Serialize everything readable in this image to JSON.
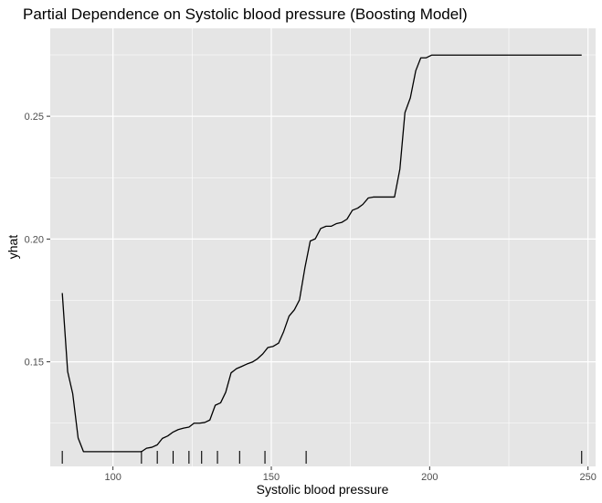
{
  "chart_data": {
    "type": "line",
    "title": "Partial Dependence on Systolic blood pressure (Boosting Model)",
    "xlabel": "Systolic blood pressure",
    "ylabel": "yhat",
    "xlim": [
      80.2,
      252.4
    ],
    "ylim": [
      0.1074,
      0.2858
    ],
    "x_ticks": [
      100,
      150,
      200,
      250
    ],
    "x_tick_labels": [
      "100",
      "150",
      "200",
      "250"
    ],
    "y_ticks": [
      0.15,
      0.2,
      0.25
    ],
    "y_tick_labels": [
      "0.15",
      "0.20",
      "0.25"
    ],
    "grid": true,
    "background": "#e5e5e5",
    "grid_color": "#ffffff",
    "line_color": "#000000",
    "series": [
      {
        "x": [
          84,
          85.7,
          87.3,
          89,
          90.7,
          92.3,
          94,
          95.6,
          97.3,
          99,
          100.6,
          102.3,
          104,
          105.6,
          107.3,
          109,
          110.6,
          112.3,
          114,
          115.6,
          117.3,
          119,
          120.6,
          122.3,
          124,
          125.6,
          127.3,
          129,
          130.6,
          132.3,
          134,
          135.6,
          137.3,
          139,
          140.6,
          142.3,
          144,
          145.6,
          147.3,
          148.9,
          150.6,
          152.3,
          153.9,
          155.6,
          157.3,
          158.9,
          160.6,
          162.3,
          163.9,
          165.6,
          167.3,
          168.9,
          170.6,
          172.3,
          173.9,
          175.6,
          177.3,
          178.9,
          180.6,
          182.2,
          183.9,
          185.6,
          187.2,
          188.9,
          190.6,
          192.2,
          193.9,
          195.6,
          197.2,
          198.9,
          200.6,
          202.2,
          248
        ],
        "y": [
          0.178,
          0.146,
          0.137,
          0.119,
          0.1134,
          0.1134,
          0.1134,
          0.1134,
          0.1134,
          0.1134,
          0.1134,
          0.1134,
          0.1134,
          0.1134,
          0.1134,
          0.1134,
          0.1148,
          0.1152,
          0.1162,
          0.1188,
          0.1198,
          0.1214,
          0.1224,
          0.123,
          0.1234,
          0.125,
          0.125,
          0.1253,
          0.1263,
          0.1323,
          0.1333,
          0.1376,
          0.1455,
          0.1472,
          0.1481,
          0.1491,
          0.1499,
          0.1512,
          0.1532,
          0.1558,
          0.1563,
          0.1576,
          0.1623,
          0.1686,
          0.1712,
          0.1752,
          0.1882,
          0.1992,
          0.2001,
          0.2043,
          0.2052,
          0.2052,
          0.2063,
          0.2068,
          0.2081,
          0.2117,
          0.2126,
          0.2141,
          0.2167,
          0.2171,
          0.2171,
          0.2171,
          0.2171,
          0.2171,
          0.2285,
          0.2515,
          0.2575,
          0.2685,
          0.2738,
          0.2738,
          0.2749,
          0.2749,
          0.2749
        ]
      }
    ],
    "rug": [
      84,
      109,
      114,
      119,
      124,
      128,
      133,
      140,
      148,
      161,
      248
    ]
  }
}
